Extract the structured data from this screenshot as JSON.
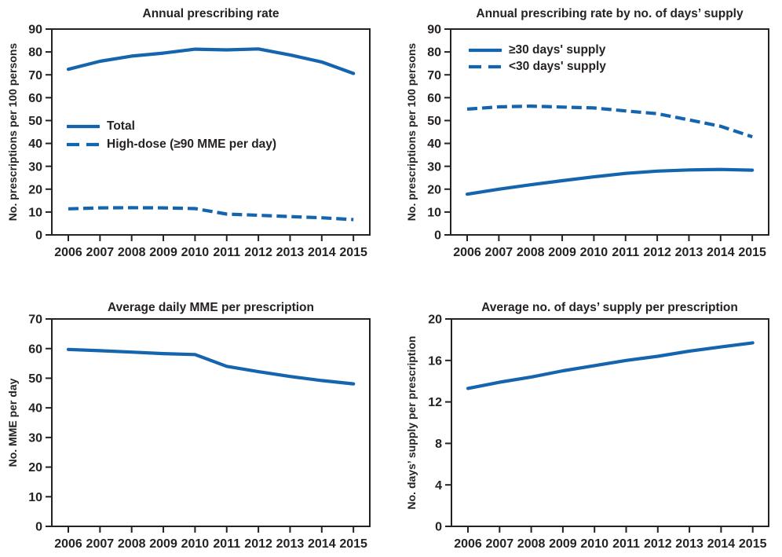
{
  "colors": {
    "line_blue": "#1565ae",
    "axis_ink": "#262223",
    "background": "#ffffff"
  },
  "chart_data": [
    {
      "id": "annual-prescribing-rate",
      "type": "line",
      "title": "Annual prescribing rate",
      "xlabel": "",
      "ylabel": "No. prescriptions per 100 persons",
      "x": [
        2006,
        2007,
        2008,
        2009,
        2010,
        2011,
        2012,
        2013,
        2014,
        2015
      ],
      "ylim": [
        0,
        90
      ],
      "yticks": [
        0,
        10,
        20,
        30,
        40,
        50,
        60,
        70,
        80,
        90
      ],
      "grid": false,
      "legend_position": "inside-left-middle",
      "series": [
        {
          "name": "Total",
          "style": "solid",
          "values": [
            72.4,
            75.9,
            78.2,
            79.5,
            81.2,
            80.9,
            81.3,
            78.7,
            75.6,
            70.6
          ]
        },
        {
          "name": "High-dose (≥90 MME per day)",
          "style": "dashed",
          "values": [
            11.4,
            11.8,
            11.9,
            11.8,
            11.5,
            9.1,
            8.6,
            8.0,
            7.5,
            6.7
          ]
        }
      ]
    },
    {
      "id": "annual-prescribing-rate-by-days-supply",
      "type": "line",
      "title": "Annual prescribing rate by no. of days’ supply",
      "xlabel": "",
      "ylabel": "No. prescriptions per 100 persons",
      "x": [
        2006,
        2007,
        2008,
        2009,
        2010,
        2011,
        2012,
        2013,
        2014,
        2015
      ],
      "ylim": [
        0,
        90
      ],
      "yticks": [
        0,
        10,
        20,
        30,
        40,
        50,
        60,
        70,
        80,
        90
      ],
      "grid": false,
      "legend_position": "inside-left-top",
      "series": [
        {
          "name": "≥30 days' supply",
          "style": "solid",
          "values": [
            17.8,
            20.0,
            21.9,
            23.7,
            25.4,
            26.9,
            27.9,
            28.4,
            28.6,
            28.3
          ]
        },
        {
          "name": "<30 days' supply",
          "style": "dashed",
          "values": [
            55.0,
            56.0,
            56.3,
            55.9,
            55.5,
            54.2,
            53.0,
            50.3,
            47.5,
            42.9
          ]
        }
      ]
    },
    {
      "id": "average-daily-mme-per-prescription",
      "type": "line",
      "title": "Average daily MME per prescription",
      "xlabel": "",
      "ylabel": "No. MME per day",
      "x": [
        2006,
        2007,
        2008,
        2009,
        2010,
        2011,
        2012,
        2013,
        2014,
        2015
      ],
      "ylim": [
        0,
        70
      ],
      "yticks": [
        0,
        10,
        20,
        30,
        40,
        50,
        60,
        70
      ],
      "grid": false,
      "legend_position": "none",
      "series": [
        {
          "name": "Average daily MME",
          "style": "solid",
          "values": [
            59.7,
            59.3,
            58.8,
            58.3,
            58.0,
            54.0,
            52.2,
            50.6,
            49.2,
            48.1
          ]
        }
      ]
    },
    {
      "id": "average-days-supply-per-prescription",
      "type": "line",
      "title": "Average no. of days’ supply per prescription",
      "xlabel": "",
      "ylabel": "No. days’ supply per prescription",
      "x": [
        2006,
        2007,
        2008,
        2009,
        2010,
        2011,
        2012,
        2013,
        2014,
        2015
      ],
      "ylim": [
        0,
        20
      ],
      "yticks": [
        0,
        4,
        8,
        12,
        16,
        20
      ],
      "grid": false,
      "legend_position": "none",
      "series": [
        {
          "name": "Average days' supply",
          "style": "solid",
          "values": [
            13.3,
            13.9,
            14.4,
            15.0,
            15.5,
            16.0,
            16.4,
            16.9,
            17.3,
            17.7
          ]
        }
      ]
    }
  ]
}
